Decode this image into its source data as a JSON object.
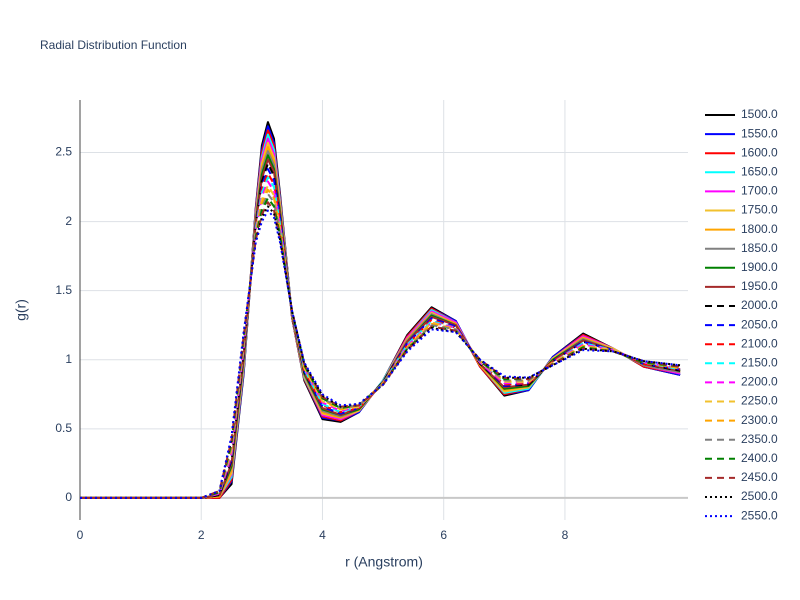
{
  "chart_data": {
    "type": "line",
    "title": "Radial Distribution Function",
    "xlabel": "r (Angstrom)",
    "ylabel": "g(r)",
    "x": [
      0,
      1,
      2,
      2.3,
      2.5,
      2.7,
      2.9,
      3.0,
      3.1,
      3.2,
      3.3,
      3.5,
      3.7,
      4.0,
      4.3,
      4.6,
      5.0,
      5.4,
      5.8,
      6.2,
      6.6,
      7.0,
      7.4,
      7.8,
      8.3,
      8.8,
      9.3,
      9.9
    ],
    "xlim": [
      0,
      10.03
    ],
    "ylim": [
      -0.16,
      2.88
    ],
    "xticks": [
      0,
      2,
      4,
      6,
      8
    ],
    "yticks": [
      0,
      0.5,
      1,
      1.5,
      2,
      2.5
    ],
    "grid": true,
    "legend": "right",
    "series": [
      {
        "name": "1500.0",
        "color": "#000000",
        "dash": "solid",
        "values": [
          0,
          0,
          0,
          0,
          0.1,
          0.9,
          2.1,
          2.55,
          2.72,
          2.6,
          2.2,
          1.3,
          0.85,
          0.57,
          0.55,
          0.62,
          0.85,
          1.18,
          1.38,
          1.28,
          0.95,
          0.74,
          0.78,
          1.02,
          1.19,
          1.08,
          0.95,
          0.89
        ]
      },
      {
        "name": "1550.0",
        "color": "#0000ff",
        "dash": "solid",
        "values": [
          0,
          0,
          0,
          0,
          0.12,
          0.91,
          2.09,
          2.52,
          2.69,
          2.57,
          2.18,
          1.3,
          0.86,
          0.58,
          0.56,
          0.62,
          0.85,
          1.17,
          1.37,
          1.28,
          0.95,
          0.75,
          0.78,
          1.02,
          1.18,
          1.08,
          0.95,
          0.89
        ]
      },
      {
        "name": "1600.0",
        "color": "#ff0000",
        "dash": "solid",
        "values": [
          0,
          0,
          0,
          0,
          0.13,
          0.93,
          2.08,
          2.5,
          2.66,
          2.55,
          2.17,
          1.3,
          0.86,
          0.59,
          0.56,
          0.63,
          0.85,
          1.17,
          1.37,
          1.27,
          0.95,
          0.75,
          0.79,
          1.01,
          1.18,
          1.08,
          0.95,
          0.9
        ]
      },
      {
        "name": "1650.0",
        "color": "#00ffff",
        "dash": "solid",
        "values": [
          0,
          0,
          0,
          0.01,
          0.15,
          0.94,
          2.06,
          2.47,
          2.63,
          2.52,
          2.15,
          1.31,
          0.87,
          0.6,
          0.57,
          0.63,
          0.85,
          1.16,
          1.36,
          1.27,
          0.96,
          0.76,
          0.79,
          1.01,
          1.17,
          1.08,
          0.96,
          0.9
        ]
      },
      {
        "name": "1700.0",
        "color": "#ff00ff",
        "dash": "solid",
        "values": [
          0,
          0,
          0,
          0.01,
          0.17,
          0.96,
          2.05,
          2.45,
          2.6,
          2.49,
          2.13,
          1.31,
          0.88,
          0.6,
          0.57,
          0.63,
          0.84,
          1.16,
          1.35,
          1.27,
          0.96,
          0.77,
          0.8,
          1.01,
          1.17,
          1.08,
          0.96,
          0.9
        ]
      },
      {
        "name": "1750.0",
        "color": "#f2c12e",
        "dash": "solid",
        "values": [
          0,
          0,
          0,
          0.01,
          0.18,
          0.97,
          2.04,
          2.42,
          2.57,
          2.46,
          2.12,
          1.31,
          0.88,
          0.61,
          0.58,
          0.63,
          0.84,
          1.15,
          1.34,
          1.26,
          0.96,
          0.77,
          0.8,
          1.01,
          1.16,
          1.08,
          0.96,
          0.91
        ]
      },
      {
        "name": "1800.0",
        "color": "#ffa500",
        "dash": "solid",
        "values": [
          0,
          0,
          0,
          0.01,
          0.2,
          0.99,
          2.03,
          2.39,
          2.54,
          2.44,
          2.1,
          1.31,
          0.89,
          0.62,
          0.58,
          0.64,
          0.84,
          1.15,
          1.33,
          1.26,
          0.96,
          0.78,
          0.81,
          1,
          1.16,
          1.07,
          0.96,
          0.91
        ]
      },
      {
        "name": "1850.0",
        "color": "#808080",
        "dash": "solid",
        "values": [
          0,
          0,
          0,
          0.02,
          0.22,
          1,
          2.02,
          2.37,
          2.51,
          2.41,
          2.08,
          1.32,
          0.89,
          0.63,
          0.59,
          0.64,
          0.84,
          1.14,
          1.33,
          1.25,
          0.97,
          0.79,
          0.81,
          1,
          1.15,
          1.07,
          0.96,
          0.91
        ]
      },
      {
        "name": "1900.0",
        "color": "#008000",
        "dash": "solid",
        "values": [
          0,
          0,
          0,
          0.02,
          0.23,
          1.01,
          2,
          2.34,
          2.48,
          2.38,
          2.07,
          1.32,
          0.9,
          0.64,
          0.6,
          0.64,
          0.84,
          1.13,
          1.32,
          1.25,
          0.97,
          0.79,
          0.81,
          1,
          1.14,
          1.07,
          0.97,
          0.92
        ]
      },
      {
        "name": "1950.0",
        "color": "#a52a2a",
        "dash": "solid",
        "values": [
          0,
          0,
          0,
          0.02,
          0.25,
          1.03,
          1.99,
          2.31,
          2.45,
          2.36,
          2.05,
          1.32,
          0.91,
          0.65,
          0.6,
          0.65,
          0.84,
          1.13,
          1.31,
          1.25,
          0.97,
          0.8,
          0.82,
          0.99,
          1.14,
          1.07,
          0.97,
          0.92
        ]
      },
      {
        "name": "2000.0",
        "color": "#000000",
        "dash": "dash",
        "values": [
          0,
          0,
          0,
          0.02,
          0.27,
          1.04,
          1.98,
          2.29,
          2.42,
          2.33,
          2.03,
          1.32,
          0.91,
          0.66,
          0.61,
          0.65,
          0.84,
          1.12,
          1.3,
          1.24,
          0.97,
          0.81,
          0.82,
          0.99,
          1.13,
          1.07,
          0.97,
          0.92
        ]
      },
      {
        "name": "2050.0",
        "color": "#0000ff",
        "dash": "dash",
        "values": [
          0,
          0,
          0,
          0.03,
          0.28,
          1.06,
          1.97,
          2.26,
          2.38,
          2.3,
          2.02,
          1.33,
          0.92,
          0.66,
          0.61,
          0.65,
          0.83,
          1.12,
          1.3,
          1.24,
          0.98,
          0.81,
          0.83,
          0.99,
          1.13,
          1.07,
          0.97,
          0.93
        ]
      },
      {
        "name": "2100.0",
        "color": "#ff0000",
        "dash": "dash",
        "values": [
          0,
          0,
          0,
          0.03,
          0.3,
          1.07,
          1.96,
          2.24,
          2.35,
          2.27,
          2,
          1.33,
          0.92,
          0.67,
          0.62,
          0.65,
          0.83,
          1.11,
          1.29,
          1.23,
          0.98,
          0.82,
          0.83,
          0.99,
          1.12,
          1.07,
          0.97,
          0.93
        ]
      },
      {
        "name": "2150.0",
        "color": "#00ffff",
        "dash": "dash",
        "values": [
          0,
          0,
          0,
          0.03,
          0.32,
          1.09,
          1.95,
          2.21,
          2.32,
          2.25,
          1.98,
          1.33,
          0.93,
          0.68,
          0.62,
          0.66,
          0.83,
          1.11,
          1.28,
          1.23,
          0.98,
          0.83,
          0.84,
          0.98,
          1.12,
          1.07,
          0.98,
          0.93
        ]
      },
      {
        "name": "2200.0",
        "color": "#ff00ff",
        "dash": "dash",
        "values": [
          0,
          0,
          0,
          0.03,
          0.33,
          1.1,
          1.93,
          2.18,
          2.29,
          2.22,
          1.97,
          1.33,
          0.94,
          0.69,
          0.63,
          0.66,
          0.83,
          1.1,
          1.27,
          1.23,
          0.98,
          0.83,
          0.84,
          0.98,
          1.11,
          1.07,
          0.98,
          0.94
        ]
      },
      {
        "name": "2250.0",
        "color": "#f2c12e",
        "dash": "dash",
        "values": [
          0,
          0,
          0,
          0.04,
          0.35,
          1.11,
          1.92,
          2.16,
          2.26,
          2.19,
          1.95,
          1.34,
          0.94,
          0.7,
          0.64,
          0.66,
          0.83,
          1.09,
          1.27,
          1.22,
          0.99,
          0.84,
          0.84,
          0.98,
          1.1,
          1.07,
          0.98,
          0.94
        ]
      },
      {
        "name": "2300.0",
        "color": "#ffa500",
        "dash": "dash",
        "values": [
          0,
          0,
          0,
          0.04,
          0.37,
          1.13,
          1.91,
          2.13,
          2.23,
          2.17,
          1.93,
          1.34,
          0.95,
          0.71,
          0.64,
          0.67,
          0.83,
          1.09,
          1.26,
          1.22,
          0.99,
          0.85,
          0.85,
          0.97,
          1.1,
          1.06,
          0.98,
          0.94
        ]
      },
      {
        "name": "2350.0",
        "color": "#808080",
        "dash": "dash",
        "values": [
          0,
          0,
          0,
          0.04,
          0.38,
          1.14,
          1.9,
          2.1,
          2.2,
          2.14,
          1.92,
          1.34,
          0.96,
          0.72,
          0.65,
          0.67,
          0.83,
          1.08,
          1.25,
          1.22,
          0.99,
          0.85,
          0.85,
          0.97,
          1.09,
          1.06,
          0.98,
          0.95
        ]
      },
      {
        "name": "2400.0",
        "color": "#008000",
        "dash": "dash",
        "values": [
          0,
          0,
          0,
          0.04,
          0.4,
          1.16,
          1.89,
          2.08,
          2.17,
          2.11,
          1.9,
          1.34,
          0.96,
          0.72,
          0.65,
          0.67,
          0.82,
          1.08,
          1.24,
          1.21,
          0.99,
          0.86,
          0.86,
          0.97,
          1.09,
          1.06,
          0.98,
          0.95
        ]
      },
      {
        "name": "2450.0",
        "color": "#a52a2a",
        "dash": "dash",
        "values": [
          0,
          0,
          0,
          0.05,
          0.42,
          1.17,
          1.87,
          2.05,
          2.14,
          2.08,
          1.88,
          1.35,
          0.97,
          0.73,
          0.66,
          0.67,
          0.82,
          1.07,
          1.24,
          1.21,
          1,
          0.87,
          0.86,
          0.97,
          1.08,
          1.06,
          0.99,
          0.95
        ]
      },
      {
        "name": "2500.0",
        "color": "#000000",
        "dash": "dot",
        "values": [
          0,
          0,
          0,
          0.05,
          0.43,
          1.19,
          1.86,
          2.03,
          2.11,
          2.06,
          1.87,
          1.35,
          0.97,
          0.74,
          0.66,
          0.68,
          0.82,
          1.07,
          1.23,
          1.2,
          1,
          0.87,
          0.87,
          0.96,
          1.08,
          1.06,
          0.99,
          0.96
        ]
      },
      {
        "name": "2550.0",
        "color": "#0000ff",
        "dash": "dot",
        "values": [
          0,
          0,
          0,
          0.05,
          0.45,
          1.2,
          1.85,
          2,
          2.08,
          2.03,
          1.85,
          1.35,
          0.98,
          0.75,
          0.67,
          0.68,
          0.82,
          1.06,
          1.22,
          1.2,
          1,
          0.88,
          0.87,
          0.96,
          1.07,
          1.06,
          0.99,
          0.96
        ]
      }
    ]
  }
}
